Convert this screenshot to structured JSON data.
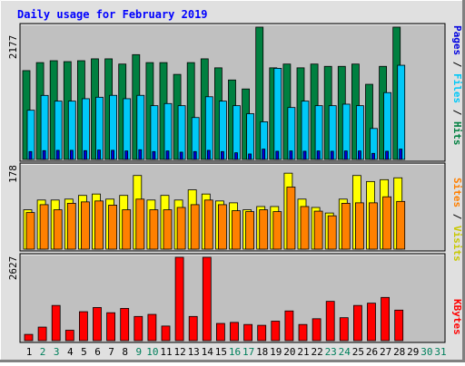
{
  "chart_data": {
    "type": "bar",
    "title": "Daily usage for February 2019",
    "categories": [
      "1",
      "2",
      "3",
      "4",
      "5",
      "6",
      "7",
      "8",
      "9",
      "10",
      "11",
      "12",
      "13",
      "14",
      "15",
      "16",
      "17",
      "18",
      "19",
      "20",
      "21",
      "22",
      "23",
      "24",
      "25",
      "26",
      "27",
      "28",
      "29",
      "30",
      "31"
    ],
    "weekend_days": [
      "2",
      "3",
      "9",
      "10",
      "16",
      "17",
      "23",
      "24",
      "30",
      "31"
    ],
    "panels": [
      {
        "key": "hits",
        "ymax_label": "2177",
        "ymax": 2177,
        "right_label": {
          "pages": "Pages",
          "sep1": " / ",
          "files": "Files",
          "sep2": " / ",
          "hits": "Hits"
        },
        "series": [
          {
            "name": "Hits",
            "color": "#008040",
            "values": [
              1462,
              1594,
              1625,
              1610,
              1625,
              1656,
              1656,
              1570,
              1725,
              1594,
              1594,
              1400,
              1594,
              1656,
              1508,
              1308,
              1160,
              2177,
              1508,
              1570,
              1508,
              1570,
              1532,
              1532,
              1570,
              1237,
              1532,
              2177,
              0,
              0,
              0
            ]
          },
          {
            "name": "Files",
            "color": "#00C8F8",
            "values": [
              810,
              1054,
              960,
              960,
              1000,
              1024,
              1055,
              1000,
              1055,
              885,
              920,
              885,
              690,
              1032,
              960,
              885,
              753,
              620,
              1500,
              855,
              960,
              885,
              885,
              910,
              885,
              510,
              1100,
              1550,
              0,
              0,
              0
            ]
          },
          {
            "name": "Pages",
            "color": "#0000E0",
            "values": [
              130,
              145,
              150,
              150,
              145,
              155,
              150,
              140,
              160,
              130,
              140,
              120,
              130,
              150,
              130,
              110,
              90,
              170,
              135,
              140,
              135,
              140,
              135,
              140,
              140,
              100,
              135,
              170,
              0,
              0,
              0
            ]
          }
        ]
      },
      {
        "key": "visits",
        "ymax_label": "178",
        "ymax": 178,
        "right_label": {
          "sites": "Sites",
          "sep1": " / ",
          "visits": "Visits"
        },
        "series": [
          {
            "name": "Visits",
            "color": "#FFFF00",
            "values": [
              85,
              106,
              106,
              108,
              116,
              119,
              108,
              116,
              159,
              106,
              116,
              106,
              128,
              119,
              104,
              100,
              85,
              92,
              92,
              164,
              108,
              90,
              78,
              108,
              159,
              146,
              150,
              154,
              0,
              0,
              0
            ]
          },
          {
            "name": "Sites",
            "color": "#FF8000",
            "values": [
              79,
              96,
              85,
              99,
              102,
              104,
              95,
              85,
              108,
              85,
              85,
              90,
              96,
              106,
              96,
              83,
              81,
              85,
              81,
              134,
              92,
              82,
              72,
              99,
              100,
              100,
              113,
              103,
              0,
              0,
              0
            ]
          }
        ]
      },
      {
        "key": "kbytes",
        "ymax_label": "2627",
        "ymax": 2627,
        "right_label": {
          "kbytes": "KBytes"
        },
        "series": [
          {
            "name": "KBytes",
            "color": "#FF0000",
            "values": [
              197,
              427,
              1109,
              328,
              912,
              1044,
              880,
              1016,
              762,
              827,
              460,
              2627,
              762,
              2627,
              542,
              575,
              509,
              483,
              614,
              936,
              509,
              690,
              1238,
              723,
              1109,
              1181,
              1362,
              962,
              0,
              0,
              0
            ]
          }
        ]
      }
    ],
    "colors": {
      "title": "#0000FF",
      "plot_background": "#C0C0C0",
      "frame_background": "#E0E0E0",
      "weekday_label": "#000000",
      "weekend_label": "#00805C",
      "pages_label": "#0000E0",
      "files_label": "#00C8F8",
      "hits_label": "#008040",
      "visits_label": "#C8C800",
      "sites_label": "#FF8000",
      "kbytes_label": "#FF0000"
    }
  }
}
